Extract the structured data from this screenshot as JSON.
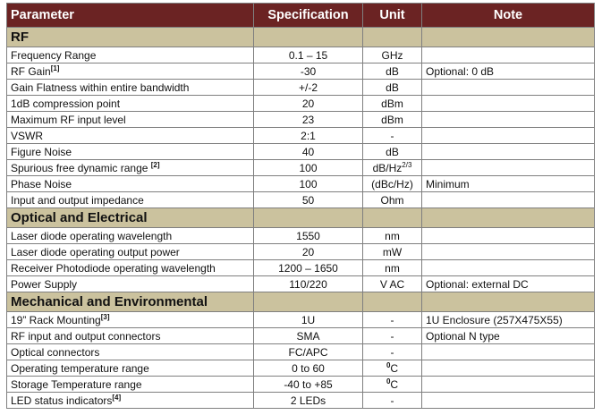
{
  "header": {
    "parameter": "Parameter",
    "specification": "Specification",
    "unit": "Unit",
    "note": "Note"
  },
  "colors": {
    "header_bg": "#6b2323",
    "section_bg": "#cbc29e"
  },
  "sections": [
    {
      "title": "RF",
      "rows": [
        {
          "param": "Frequency Range",
          "spec": "0.1 – 15",
          "unit": "GHz",
          "note": ""
        },
        {
          "param": "RF Gain",
          "sup": "[1]",
          "spec": "-30",
          "unit": "dB",
          "note": "Optional: 0 dB"
        },
        {
          "param": "Gain Flatness within entire bandwidth",
          "spec": "+/-2",
          "unit": "dB",
          "note": ""
        },
        {
          "param": "1dB compression point",
          "spec": "20",
          "unit": "dBm",
          "note": ""
        },
        {
          "param": "Maximum RF input level",
          "spec": "23",
          "unit": "dBm",
          "note": ""
        },
        {
          "param": "VSWR",
          "spec": "2:1",
          "unit": "-",
          "note": ""
        },
        {
          "param": "Figure Noise",
          "spec": "40",
          "unit": "dB",
          "note": ""
        },
        {
          "param": "Spurious free dynamic range ",
          "sup": "[2]",
          "spec": "100",
          "unit": "dB/Hz",
          "unit_sup": "2/3",
          "note": ""
        },
        {
          "param": "Phase Noise",
          "spec": "100",
          "unit": "(dBc/Hz)",
          "note": "Minimum"
        },
        {
          "param": "Input and output impedance",
          "spec": "50",
          "unit": "Ohm",
          "note": ""
        }
      ]
    },
    {
      "title": "Optical and Electrical",
      "rows": [
        {
          "param": "Laser diode operating wavelength",
          "spec": "1550",
          "unit": "nm",
          "note": ""
        },
        {
          "param": "Laser diode operating output power",
          "spec": "20",
          "unit": "mW",
          "note": ""
        },
        {
          "param": "Receiver Photodiode operating wavelength",
          "spec": "1200 – 1650",
          "unit": "nm",
          "note": ""
        },
        {
          "param": "Power Supply",
          "spec": "110/220",
          "unit": "V AC",
          "note": "Optional: external DC"
        }
      ]
    },
    {
      "title": "Mechanical and Environmental",
      "rows": [
        {
          "param": "19” Rack Mounting",
          "sup": "[3]",
          "spec": "1U",
          "unit": "-",
          "note": "1U Enclosure (257X475X55)"
        },
        {
          "param": "RF input and output connectors",
          "spec": "SMA",
          "unit": "-",
          "note": "Optional N type"
        },
        {
          "param": "Optical connectors",
          "spec": "FC/APC",
          "unit": "-",
          "note": ""
        },
        {
          "param": "Operating temperature range",
          "spec": "0 to 60",
          "unit_pre_sup": "0",
          "unit": "C",
          "note": ""
        },
        {
          "param": "Storage Temperature range",
          "spec": "-40 to +85",
          "unit_pre_sup": "0",
          "unit": "C",
          "note": ""
        },
        {
          "param": "LED status indicators",
          "sup": "[4]",
          "spec": "2 LEDs",
          "unit": "-",
          "note": ""
        }
      ]
    }
  ]
}
